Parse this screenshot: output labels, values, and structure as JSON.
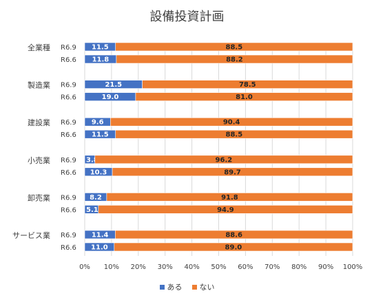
{
  "chart_data": {
    "type": "bar",
    "orientation": "horizontal",
    "stacked": true,
    "title": "設備投資計画",
    "xlim": [
      0,
      100
    ],
    "x_ticks": [
      "0%",
      "10%",
      "20%",
      "30%",
      "40%",
      "50%",
      "60%",
      "70%",
      "80%",
      "90%",
      "100%"
    ],
    "grid": true,
    "legend_position": "bottom",
    "series": [
      {
        "name": "ある",
        "color": "#4472C4"
      },
      {
        "name": "ない",
        "color": "#ED7D31"
      }
    ],
    "groups": [
      {
        "name": "全業種",
        "rows": [
          {
            "period": "R6.9",
            "values": [
              11.5,
              88.5
            ]
          },
          {
            "period": "R6.6",
            "values": [
              11.8,
              88.2
            ]
          }
        ]
      },
      {
        "name": "製造業",
        "rows": [
          {
            "period": "R6.9",
            "values": [
              21.5,
              78.5
            ]
          },
          {
            "period": "R6.6",
            "values": [
              19.0,
              81.0
            ]
          }
        ]
      },
      {
        "name": "建設業",
        "rows": [
          {
            "period": "R6.9",
            "values": [
              9.6,
              90.4
            ]
          },
          {
            "period": "R6.6",
            "values": [
              11.5,
              88.5
            ]
          }
        ]
      },
      {
        "name": "小売業",
        "rows": [
          {
            "period": "R6.9",
            "values": [
              3.8,
              96.2
            ]
          },
          {
            "period": "R6.6",
            "values": [
              10.3,
              89.7
            ]
          }
        ]
      },
      {
        "name": "卸売業",
        "rows": [
          {
            "period": "R6.9",
            "values": [
              8.2,
              91.8
            ]
          },
          {
            "period": "R6.6",
            "values": [
              5.1,
              94.9
            ]
          }
        ]
      },
      {
        "name": "サービス業",
        "rows": [
          {
            "period": "R6.9",
            "values": [
              11.4,
              88.6
            ]
          },
          {
            "period": "R6.6",
            "values": [
              11.0,
              89.0
            ]
          }
        ]
      }
    ]
  }
}
